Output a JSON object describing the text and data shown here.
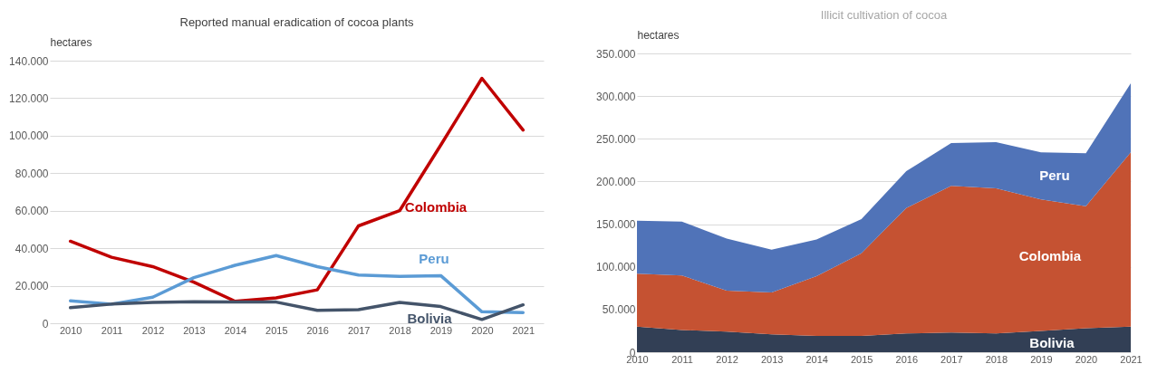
{
  "chart_data": [
    {
      "type": "line",
      "title": "Reported manual eradication of cocoa plants",
      "ylabel": "hectares",
      "categories": [
        "2010",
        "2011",
        "2012",
        "2013",
        "2014",
        "2015",
        "2016",
        "2017",
        "2018",
        "2019",
        "2020",
        "2021"
      ],
      "series": [
        {
          "name": "Colombia",
          "color": "#c00000",
          "values": [
            43700,
            35200,
            30200,
            21900,
            11700,
            13500,
            17800,
            51900,
            60000,
            95000,
            130600,
            103000
          ]
        },
        {
          "name": "Peru",
          "color": "#5b9bd5",
          "values": [
            12000,
            10200,
            13900,
            24300,
            30900,
            36100,
            30200,
            25700,
            25000,
            25400,
            6100,
            5700
          ]
        },
        {
          "name": "Bolivia",
          "color": "#44546a",
          "values": [
            8300,
            10200,
            11100,
            11500,
            11300,
            11300,
            6900,
            7200,
            11100,
            8900,
            2000,
            9800
          ]
        }
      ],
      "ylim": [
        0,
        140000
      ],
      "yticks": [
        0,
        {
          "value": 20000,
          "label": "20.000"
        },
        {
          "value": 40000,
          "label": "40.000"
        },
        {
          "value": 60000,
          "label": "60.000"
        },
        {
          "value": 80000,
          "label": "80.000"
        },
        {
          "value": 100000,
          "label": "100.000"
        },
        {
          "value": 120000,
          "label": "120.000"
        },
        {
          "value": 140000,
          "label": "140.000"
        }
      ],
      "grid": "y",
      "legend": false
    },
    {
      "type": "area",
      "title": "Illicit cultivation of cocoa",
      "ylabel": "hectares",
      "stacked": true,
      "categories": [
        "2010",
        "2011",
        "2012",
        "2013",
        "2014",
        "2015",
        "2016",
        "2017",
        "2018",
        "2019",
        "2020",
        "2021"
      ],
      "series": [
        {
          "name": "Bolivia",
          "color": "#323f55",
          "values": [
            30000,
            26000,
            24000,
            21000,
            19000,
            19000,
            22000,
            23000,
            22000,
            25000,
            28000,
            30000
          ]
        },
        {
          "name": "Colombia",
          "color": "#c55232",
          "values": [
            62000,
            64000,
            48000,
            49000,
            70000,
            97000,
            147000,
            172000,
            170000,
            154000,
            143000,
            204000
          ]
        },
        {
          "name": "Peru",
          "color": "#5073b8",
          "values": [
            62000,
            63000,
            61000,
            50000,
            43000,
            40000,
            43000,
            50000,
            54000,
            55000,
            62000,
            81000
          ]
        }
      ],
      "ylim": [
        0,
        350000
      ],
      "yticks": [
        0,
        {
          "value": 50000,
          "label": "50.000"
        },
        {
          "value": 100000,
          "label": "100.000"
        },
        {
          "value": 150000,
          "label": "150.000"
        },
        {
          "value": 200000,
          "label": "200.000"
        },
        {
          "value": 250000,
          "label": "250.000"
        },
        {
          "value": 300000,
          "label": "300.000"
        },
        {
          "value": 350000,
          "label": "350.000"
        }
      ],
      "grid": "y",
      "legend": false
    }
  ]
}
